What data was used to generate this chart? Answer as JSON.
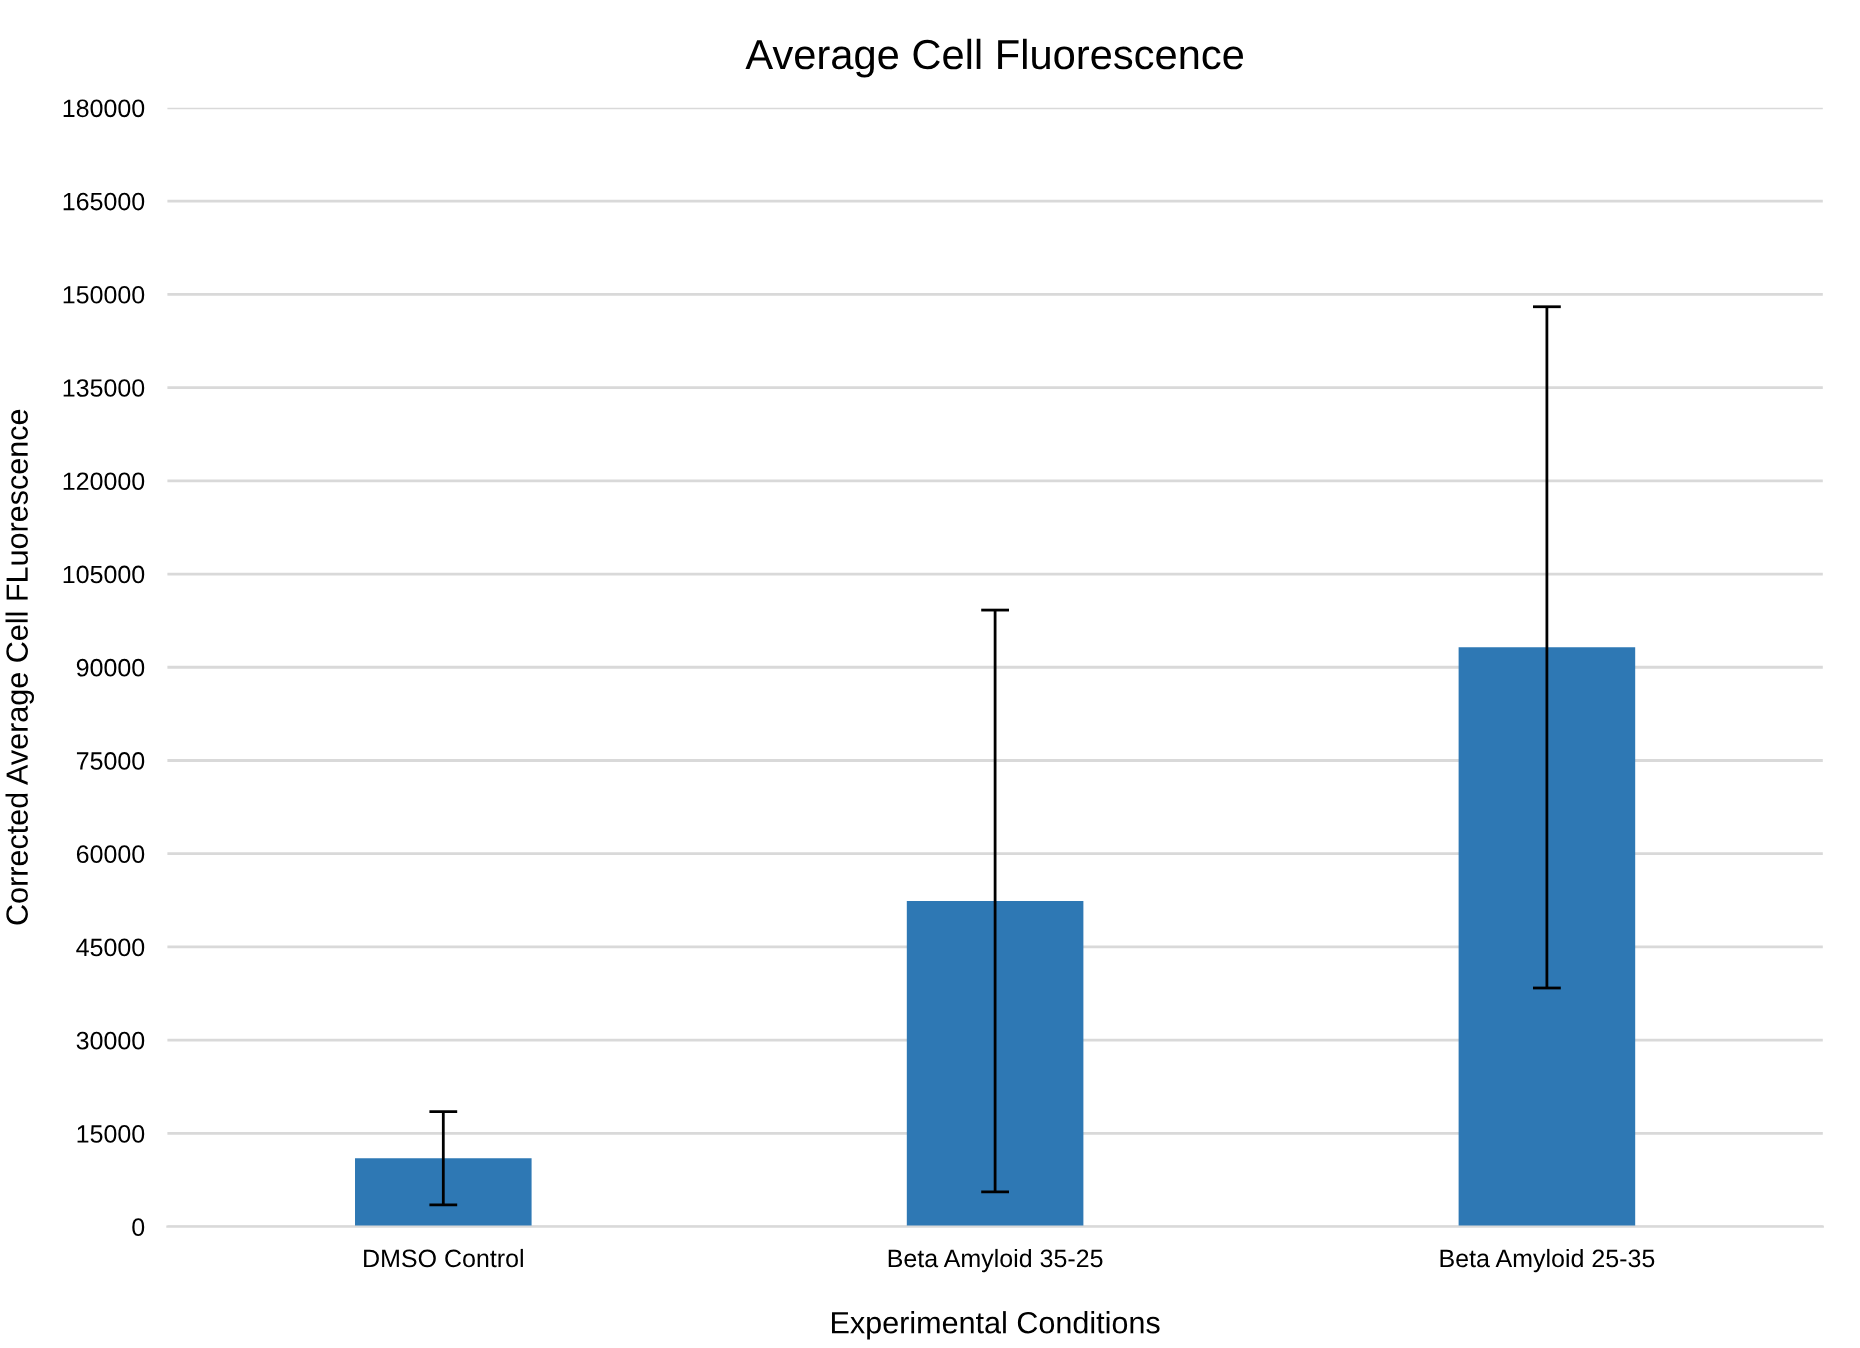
{
  "chart_data": {
    "type": "bar",
    "title": "Average Cell Fluorescence",
    "xlabel": "Experimental Conditions",
    "ylabel": "Corrected Average Cell FLuorescence",
    "categories": [
      "DMSO Control",
      "Beta Amyloid 35-25",
      "Beta Amyloid 25-35"
    ],
    "values": [
      11000,
      52400,
      93200
    ],
    "errors": [
      7500,
      46800,
      54800
    ],
    "color": "#2e78b4",
    "ylim": [
      0,
      180000
    ],
    "yticks": [
      0,
      15000,
      30000,
      45000,
      60000,
      75000,
      90000,
      105000,
      120000,
      135000,
      150000,
      165000,
      180000
    ],
    "grid": "y"
  }
}
